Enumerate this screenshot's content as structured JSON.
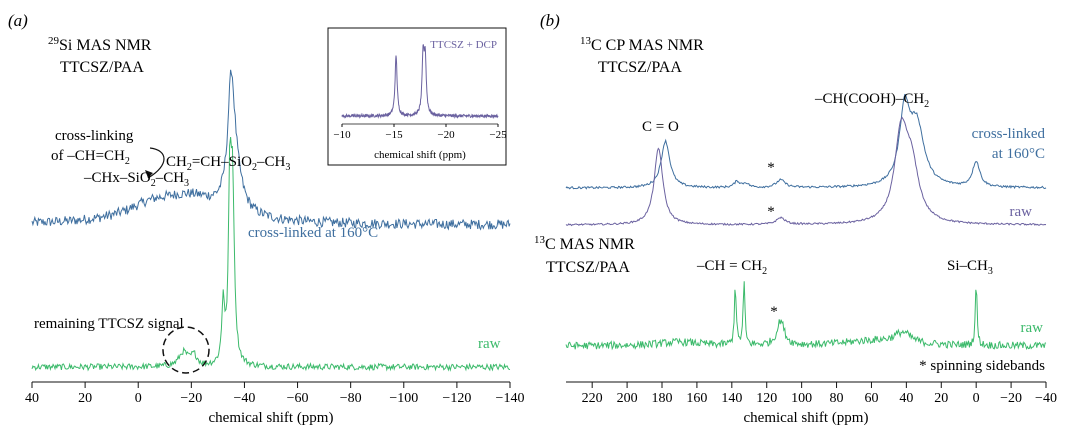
{
  "colors": {
    "blue": "#3f6f9f",
    "green": "#3cba6b",
    "purple": "#6b62a0",
    "axis": "#111111"
  },
  "chart_data": [
    {
      "type": "line",
      "panel_label": "(a)",
      "title_lines": [
        "29Si MAS NMR",
        "TTCSZ/PAA"
      ],
      "xlabel": "chemical shift (ppm)",
      "xlim": [
        40,
        -140
      ],
      "xticks": [
        40,
        20,
        0,
        -20,
        -40,
        -60,
        -80,
        -100,
        -120,
        -140
      ],
      "series": [
        {
          "name": "cross-linked at 160°C",
          "color": "#3f6f9f",
          "peaks": [
            [
              -35,
              1.0,
              1.5
            ],
            [
              -36.5,
              0.35,
              3
            ],
            [
              -20,
              0.22,
              15
            ],
            [
              -5,
              0.12,
              12
            ]
          ]
        },
        {
          "name": "raw",
          "color": "#3cba6b",
          "peaks": [
            [
              -35.5,
              1.0,
              0.8
            ],
            [
              -34.5,
              0.9,
              0.6
            ],
            [
              -32,
              0.35,
              0.6
            ],
            [
              -17,
              0.08,
              2
            ],
            [
              -21,
              0.06,
              1.5
            ]
          ]
        }
      ],
      "annotations": {
        "structure": "CH2=CH–SiO2–CH3",
        "crosslink_line1": "cross-linking",
        "crosslink_line2": "of –CH=CH2",
        "product": "–CHx–SiO2–CH3",
        "remaining": "remaining TTCSZ signal"
      },
      "inset": {
        "title": "TTCSZ + DCP",
        "xlabel": "chemical shift (ppm)",
        "xlim": [
          -10,
          -25
        ],
        "xticks": [
          -10,
          -15,
          -20,
          -25
        ],
        "peaks": [
          [
            -15.2,
            1.0,
            0.12
          ],
          [
            -17.8,
            0.95,
            0.12
          ],
          [
            -18.0,
            0.9,
            0.12
          ]
        ]
      }
    },
    {
      "type": "line",
      "panel_label": "(b)",
      "title_lines": [
        "13C CP MAS NMR",
        "TTCSZ/PAA"
      ],
      "subtitle_lines": [
        "13C MAS NMR",
        "TTCSZ/PAA"
      ],
      "xlabel": "chemical shift (ppm)",
      "xlim": [
        235,
        -40
      ],
      "xticks": [
        220,
        200,
        180,
        160,
        140,
        120,
        100,
        80,
        60,
        40,
        20,
        0,
        -20,
        -40
      ],
      "series": [
        {
          "name": "cross-linked at 160°C",
          "color": "#3f6f9f",
          "peaks": [
            [
              178,
              0.55,
              3
            ],
            [
              41,
              0.85,
              3.5
            ],
            [
              34,
              0.7,
              5
            ],
            [
              0,
              0.3,
              2.5
            ],
            [
              137,
              0.07,
              2
            ],
            [
              132,
              0.05,
              2
            ],
            [
              112,
              0.09,
              3
            ]
          ]
        },
        {
          "name": "raw",
          "color": "#6b62a0",
          "peaks": [
            [
              182,
              0.9,
              3
            ],
            [
              43,
              1.0,
              4.5
            ],
            [
              37,
              0.6,
              5
            ],
            [
              112,
              0.08,
              3
            ]
          ]
        },
        {
          "name": "raw",
          "color": "#3cba6b",
          "peaks": [
            [
              138,
              1.0,
              0.6
            ],
            [
              133,
              1.0,
              0.6
            ],
            [
              112,
              0.4,
              2.5
            ],
            [
              42,
              0.18,
              6
            ],
            [
              0,
              1.0,
              0.6
            ],
            [
              60,
              0.08,
              20
            ],
            [
              170,
              0.06,
              15
            ]
          ]
        }
      ],
      "annotations": {
        "co": "C = O",
        "chcooh": "–CH(COOH)–CH2",
        "chch2": "–CH = CH2",
        "sich3": "Si–CH3",
        "star": "*",
        "sidebands": "* spinning sidebands"
      }
    }
  ]
}
